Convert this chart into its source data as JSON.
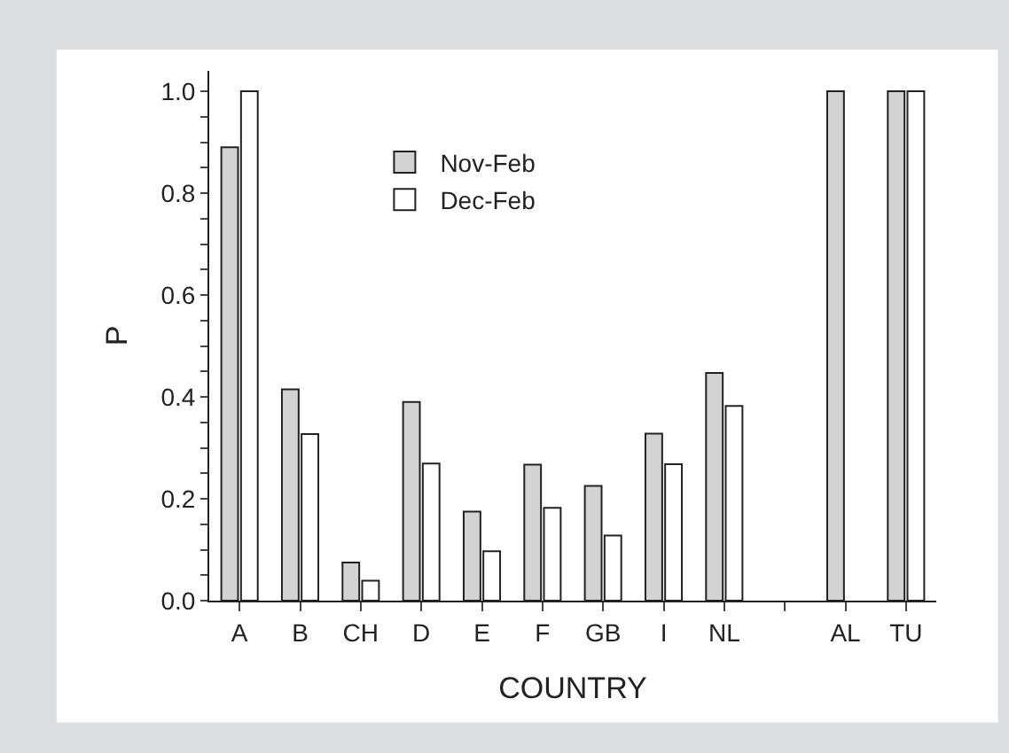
{
  "chart_data": {
    "type": "bar",
    "xlabel": "COUNTRY",
    "ylabel": "P",
    "categories": [
      "A",
      "B",
      "CH",
      "D",
      "E",
      "F",
      "GB",
      "I",
      "NL",
      null,
      "AL",
      "TU"
    ],
    "series": [
      {
        "name": "Nov-Feb",
        "color": "#d3d3d3",
        "values": [
          0.89,
          0.415,
          0.075,
          0.39,
          0.175,
          0.267,
          0.225,
          0.328,
          0.447,
          null,
          1.0,
          1.0
        ]
      },
      {
        "name": "Dec-Feb",
        "color": "#ffffff",
        "values": [
          1.0,
          0.327,
          0.039,
          0.269,
          0.097,
          0.182,
          0.128,
          0.268,
          0.382,
          null,
          null,
          1.0
        ]
      }
    ],
    "ylim": [
      0,
      1.04
    ],
    "yticks": [
      {
        "value": 0,
        "label": "0.0"
      },
      {
        "value": 0.05,
        "label": null
      },
      {
        "value": 0.1,
        "label": null
      },
      {
        "value": 0.15,
        "label": null
      },
      {
        "value": 0.2,
        "label": "0.2"
      },
      {
        "value": 0.25,
        "label": null
      },
      {
        "value": 0.3,
        "label": null
      },
      {
        "value": 0.35,
        "label": null
      },
      {
        "value": 0.4,
        "label": "0.4"
      },
      {
        "value": 0.45,
        "label": null
      },
      {
        "value": 0.5,
        "label": null
      },
      {
        "value": 0.55,
        "label": null
      },
      {
        "value": 0.6,
        "label": "0.6"
      },
      {
        "value": 0.65,
        "label": null
      },
      {
        "value": 0.7,
        "label": null
      },
      {
        "value": 0.75,
        "label": null
      },
      {
        "value": 0.8,
        "label": "0.8"
      },
      {
        "value": 0.85,
        "label": null
      },
      {
        "value": 0.9,
        "label": null
      },
      {
        "value": 0.95,
        "label": null
      },
      {
        "value": 1.0,
        "label": "1.0"
      }
    ],
    "legend": "top left"
  }
}
